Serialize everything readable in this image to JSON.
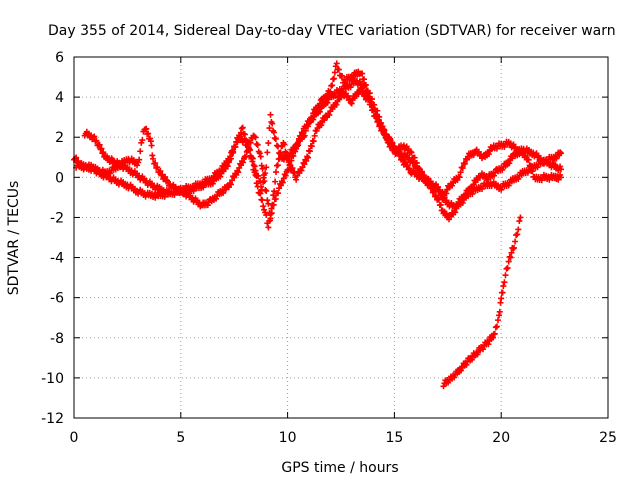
{
  "chart_data": {
    "type": "scatter",
    "title": "Day 355 of 2014, Sidereal Day-to-day VTEC variation (SDTVAR) for receiver warn",
    "xlabel": "GPS time / hours",
    "ylabel": "SDTVAR / TECUs",
    "xlim": [
      0,
      25
    ],
    "ylim": [
      -12,
      6
    ],
    "x_ticks": [
      0,
      5,
      10,
      15,
      20,
      25
    ],
    "x_tick_labels": [
      "0",
      "5",
      "10",
      "15",
      "20",
      "25"
    ],
    "y_ticks": [
      -12,
      -10,
      -8,
      -6,
      -4,
      -2,
      0,
      2,
      4,
      6
    ],
    "y_tick_labels": [
      "-12",
      "-10",
      "-8",
      "-6",
      "-4",
      "-2",
      "0",
      "2",
      "4",
      "6"
    ],
    "grid": true,
    "marker": "+",
    "series_color": "#ff0000",
    "series": [
      {
        "name": "trace-1",
        "points": [
          [
            0,
            1.0
          ],
          [
            0.3,
            0.6
          ],
          [
            0.8,
            0.5
          ],
          [
            1.2,
            0.2
          ],
          [
            1.6,
            0.0
          ],
          [
            2.0,
            -0.2
          ],
          [
            2.5,
            -0.4
          ],
          [
            3.0,
            -0.7
          ],
          [
            3.5,
            -0.9
          ],
          [
            4.0,
            -0.9
          ],
          [
            4.5,
            -0.8
          ],
          [
            5.0,
            -0.6
          ],
          [
            5.5,
            -0.5
          ],
          [
            6.0,
            -0.3
          ],
          [
            6.5,
            0.0
          ],
          [
            7.0,
            0.5
          ],
          [
            7.4,
            1.2
          ],
          [
            7.7,
            2.0
          ],
          [
            8.0,
            1.8
          ],
          [
            8.3,
            1.0
          ],
          [
            8.6,
            -0.5
          ],
          [
            8.9,
            -1.5
          ],
          [
            9.1,
            -2.5
          ],
          [
            9.3,
            -1.5
          ],
          [
            9.6,
            -0.5
          ],
          [
            10.0,
            0.3
          ],
          [
            10.4,
            1.5
          ],
          [
            10.8,
            2.5
          ],
          [
            11.2,
            3.0
          ],
          [
            11.6,
            3.5
          ],
          [
            12.0,
            4.0
          ],
          [
            12.4,
            4.3
          ],
          [
            12.8,
            4.5
          ],
          [
            13.2,
            4.8
          ],
          [
            13.6,
            4.5
          ],
          [
            14.0,
            3.5
          ],
          [
            14.4,
            2.5
          ],
          [
            14.8,
            1.8
          ],
          [
            15.2,
            1.2
          ],
          [
            15.6,
            1.0
          ],
          [
            16.0,
            0.6
          ],
          [
            16.5,
            -0.2
          ],
          [
            17.0,
            -1.0
          ],
          [
            17.3,
            -1.8
          ],
          [
            17.6,
            -2.0
          ],
          [
            18.0,
            -1.4
          ],
          [
            18.5,
            -0.8
          ],
          [
            19.0,
            -0.5
          ],
          [
            19.5,
            -0.3
          ],
          [
            20.0,
            -0.5
          ],
          [
            20.5,
            -0.2
          ],
          [
            21.0,
            0.2
          ],
          [
            21.5,
            0.5
          ],
          [
            22.0,
            0.8
          ],
          [
            22.5,
            1.0
          ],
          [
            22.8,
            1.2
          ]
        ]
      },
      {
        "name": "trace-2",
        "points": [
          [
            0.5,
            2.2
          ],
          [
            0.9,
            2.0
          ],
          [
            1.2,
            1.5
          ],
          [
            1.5,
            1.0
          ],
          [
            1.8,
            0.8
          ],
          [
            2.2,
            0.6
          ],
          [
            2.7,
            0.3
          ],
          [
            3.1,
            0.0
          ],
          [
            3.5,
            -0.3
          ],
          [
            4.0,
            -0.6
          ],
          [
            4.5,
            -0.8
          ],
          [
            5.0,
            -0.7
          ],
          [
            5.5,
            -0.6
          ],
          [
            6.0,
            -0.4
          ],
          [
            6.5,
            -0.2
          ],
          [
            7.0,
            0.3
          ],
          [
            7.3,
            0.8
          ],
          [
            7.6,
            1.8
          ],
          [
            7.9,
            2.4
          ],
          [
            8.2,
            1.5
          ],
          [
            8.5,
            0.3
          ],
          [
            8.8,
            -0.5
          ],
          [
            9.0,
            0.5
          ],
          [
            9.2,
            3.0
          ],
          [
            9.4,
            2.0
          ],
          [
            9.7,
            1.0
          ],
          [
            10.0,
            1.0
          ],
          [
            10.4,
            1.6
          ],
          [
            10.8,
            2.2
          ],
          [
            11.2,
            3.2
          ],
          [
            11.6,
            3.8
          ],
          [
            12.0,
            4.3
          ],
          [
            12.3,
            5.6
          ],
          [
            12.6,
            4.8
          ],
          [
            13.0,
            5.0
          ],
          [
            13.4,
            5.3
          ],
          [
            13.8,
            4.2
          ],
          [
            14.2,
            3.2
          ],
          [
            14.6,
            2.0
          ],
          [
            15.0,
            1.2
          ],
          [
            15.4,
            1.6
          ],
          [
            15.8,
            1.2
          ],
          [
            16.2,
            0.3
          ],
          [
            16.6,
            -0.3
          ],
          [
            17.0,
            -0.6
          ],
          [
            17.4,
            -1.2
          ],
          [
            17.8,
            -1.5
          ],
          [
            18.2,
            -1.0
          ],
          [
            18.6,
            -0.5
          ],
          [
            19.0,
            0.1
          ],
          [
            19.4,
            0.0
          ],
          [
            19.8,
            0.3
          ],
          [
            20.2,
            0.6
          ],
          [
            20.6,
            1.1
          ],
          [
            21.0,
            1.4
          ],
          [
            21.5,
            1.2
          ],
          [
            22.0,
            0.8
          ],
          [
            22.4,
            0.6
          ],
          [
            22.8,
            0.4
          ]
        ]
      },
      {
        "name": "trace-3",
        "points": [
          [
            0.1,
            0.6
          ],
          [
            0.5,
            0.5
          ],
          [
            1.0,
            0.4
          ],
          [
            1.5,
            0.2
          ],
          [
            2.0,
            0.5
          ],
          [
            2.5,
            0.9
          ],
          [
            3.0,
            0.7
          ],
          [
            3.3,
            2.5
          ],
          [
            3.6,
            1.8
          ],
          [
            3.7,
            0.8
          ],
          [
            4.0,
            0.3
          ],
          [
            4.4,
            -0.3
          ],
          [
            4.8,
            -0.6
          ],
          [
            5.2,
            -0.8
          ],
          [
            5.6,
            -1.1
          ],
          [
            6.0,
            -1.4
          ],
          [
            6.4,
            -1.2
          ],
          [
            6.8,
            -0.8
          ],
          [
            7.2,
            -0.5
          ],
          [
            7.6,
            0.2
          ],
          [
            8.0,
            1.0
          ],
          [
            8.4,
            2.2
          ],
          [
            8.7,
            1.2
          ],
          [
            9.0,
            -0.8
          ],
          [
            9.2,
            -2.0
          ],
          [
            9.5,
            0.5
          ],
          [
            9.8,
            1.8
          ],
          [
            10.1,
            0.6
          ],
          [
            10.4,
            0.0
          ],
          [
            10.7,
            0.5
          ],
          [
            11.0,
            1.2
          ],
          [
            11.4,
            2.5
          ],
          [
            11.8,
            3.0
          ],
          [
            12.2,
            3.6
          ],
          [
            12.6,
            4.2
          ],
          [
            13.0,
            3.8
          ],
          [
            13.4,
            4.4
          ],
          [
            13.8,
            3.8
          ],
          [
            14.2,
            2.8
          ],
          [
            14.6,
            2.0
          ],
          [
            15.0,
            1.5
          ],
          [
            15.4,
            0.8
          ],
          [
            15.8,
            0.3
          ],
          [
            16.2,
            0.0
          ],
          [
            16.6,
            -0.2
          ],
          [
            17.0,
            -0.5
          ],
          [
            17.3,
            -0.9
          ],
          [
            17.6,
            -0.4
          ],
          [
            18.0,
            0.0
          ],
          [
            18.4,
            1.0
          ],
          [
            18.8,
            1.3
          ],
          [
            19.2,
            1.0
          ],
          [
            19.6,
            1.5
          ],
          [
            20.0,
            1.6
          ],
          [
            20.4,
            1.7
          ],
          [
            20.8,
            1.3
          ],
          [
            21.2,
            1.0
          ],
          [
            21.6,
            -0.1
          ],
          [
            22.0,
            0.0
          ],
          [
            22.5,
            0.0
          ],
          [
            22.8,
            0.0
          ]
        ]
      },
      {
        "name": "trace-4",
        "points": [
          [
            17.3,
            -10.3
          ],
          [
            17.6,
            -10.1
          ],
          [
            17.9,
            -9.8
          ],
          [
            18.2,
            -9.4
          ],
          [
            18.5,
            -9.1
          ],
          [
            18.8,
            -8.8
          ],
          [
            19.1,
            -8.5
          ],
          [
            19.4,
            -8.2
          ],
          [
            19.7,
            -7.8
          ],
          [
            19.9,
            -7.0
          ],
          [
            20.0,
            -6.0
          ],
          [
            20.1,
            -5.5
          ],
          [
            20.2,
            -4.8
          ],
          [
            20.4,
            -4.0
          ],
          [
            20.6,
            -3.4
          ],
          [
            20.8,
            -2.6
          ],
          [
            20.9,
            -2.0
          ]
        ]
      }
    ]
  }
}
